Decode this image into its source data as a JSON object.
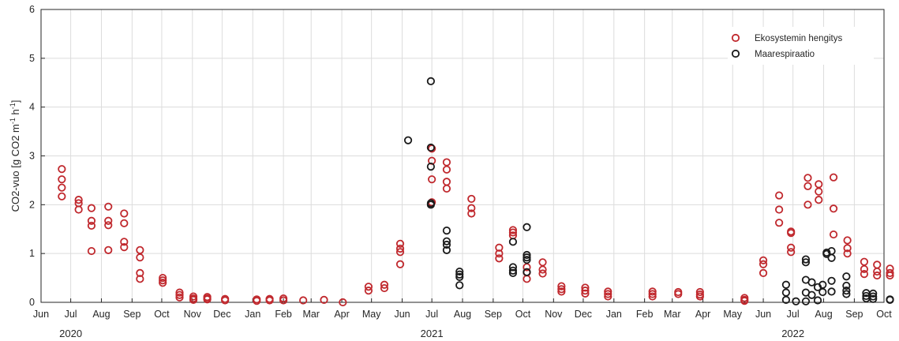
{
  "chart_data": {
    "type": "scatter",
    "xlabel": "",
    "ylabel": "CO2-vuo [g CO2 m-1 h-1]",
    "ylim": [
      0,
      6
    ],
    "yticks": [
      "0",
      "1",
      "2",
      "3",
      "4",
      "5",
      "6"
    ],
    "xlim": [
      "2020-06-01",
      "2022-10-01"
    ],
    "xticks": [
      {
        "label": "Jun",
        "date": "2020-06-01"
      },
      {
        "label": "Jul",
        "date": "2020-07-01"
      },
      {
        "label": "Aug",
        "date": "2020-08-01"
      },
      {
        "label": "Sep",
        "date": "2020-09-01"
      },
      {
        "label": "Oct",
        "date": "2020-10-01"
      },
      {
        "label": "Nov",
        "date": "2020-11-01"
      },
      {
        "label": "Dec",
        "date": "2020-12-01"
      },
      {
        "label": "Jan",
        "date": "2021-01-01"
      },
      {
        "label": "Feb",
        "date": "2021-02-01"
      },
      {
        "label": "Mar",
        "date": "2021-03-01"
      },
      {
        "label": "Apr",
        "date": "2021-04-01"
      },
      {
        "label": "May",
        "date": "2021-05-01"
      },
      {
        "label": "Jun",
        "date": "2021-06-01"
      },
      {
        "label": "Jul",
        "date": "2021-07-01"
      },
      {
        "label": "Aug",
        "date": "2021-08-01"
      },
      {
        "label": "Sep",
        "date": "2021-09-01"
      },
      {
        "label": "Oct",
        "date": "2021-10-01"
      },
      {
        "label": "Nov",
        "date": "2021-11-01"
      },
      {
        "label": "Dec",
        "date": "2021-12-01"
      },
      {
        "label": "Jan",
        "date": "2022-01-01"
      },
      {
        "label": "Feb",
        "date": "2022-02-01"
      },
      {
        "label": "Mar",
        "date": "2022-03-01"
      },
      {
        "label": "Apr",
        "date": "2022-04-01"
      },
      {
        "label": "May",
        "date": "2022-05-01"
      },
      {
        "label": "Jun",
        "date": "2022-06-01"
      },
      {
        "label": "Jul",
        "date": "2022-07-01"
      },
      {
        "label": "Aug",
        "date": "2022-08-01"
      },
      {
        "label": "Sep",
        "date": "2022-09-01"
      },
      {
        "label": "Oct",
        "date": "2022-10-01"
      }
    ],
    "year_labels": [
      {
        "label": "2020",
        "date": "2020-07-01"
      },
      {
        "label": "2021",
        "date": "2021-07-01"
      },
      {
        "label": "2022",
        "date": "2022-07-01"
      }
    ],
    "grid": true,
    "legend_position": "top-right",
    "series": [
      {
        "name": "Ekosystemin hengitys",
        "color": "#c0282d",
        "points": [
          {
            "date": "2020-06-22",
            "values": [
              2.73,
              2.52,
              2.35,
              2.17
            ]
          },
          {
            "date": "2020-07-09",
            "values": [
              2.1,
              2.03,
              1.9
            ]
          },
          {
            "date": "2020-07-22",
            "values": [
              1.93,
              1.67,
              1.57,
              1.05
            ]
          },
          {
            "date": "2020-08-08",
            "values": [
              1.96,
              1.67,
              1.58,
              1.07
            ]
          },
          {
            "date": "2020-08-24",
            "values": [
              1.82,
              1.62,
              1.24,
              1.13
            ]
          },
          {
            "date": "2020-09-09",
            "values": [
              1.07,
              0.92,
              0.6,
              0.48
            ]
          },
          {
            "date": "2020-10-02",
            "values": [
              0.5,
              0.45,
              0.4
            ]
          },
          {
            "date": "2020-10-19",
            "values": [
              0.2,
              0.15,
              0.1
            ]
          },
          {
            "date": "2020-11-02",
            "values": [
              0.12,
              0.08,
              0.05
            ]
          },
          {
            "date": "2020-11-16",
            "values": [
              0.11,
              0.08,
              0.06
            ]
          },
          {
            "date": "2020-12-04",
            "values": [
              0.07,
              0.04
            ]
          },
          {
            "date": "2021-01-05",
            "values": [
              0.06,
              0.03
            ]
          },
          {
            "date": "2021-01-18",
            "values": [
              0.07,
              0.04
            ]
          },
          {
            "date": "2021-02-01",
            "values": [
              0.08,
              0.04
            ]
          },
          {
            "date": "2021-02-21",
            "values": [
              0.04
            ]
          },
          {
            "date": "2021-03-14",
            "values": [
              0.05
            ]
          },
          {
            "date": "2021-04-02",
            "values": [
              0.0
            ]
          },
          {
            "date": "2021-04-28",
            "values": [
              0.32,
              0.24
            ]
          },
          {
            "date": "2021-05-14",
            "values": [
              0.36,
              0.29
            ]
          },
          {
            "date": "2021-05-30",
            "values": [
              1.2,
              1.1,
              1.03,
              0.78
            ]
          },
          {
            "date": "2021-07-01",
            "values": [
              3.15,
              2.9,
              2.52,
              2.05
            ]
          },
          {
            "date": "2021-07-16",
            "values": [
              2.87,
              2.72,
              2.47,
              2.33
            ]
          },
          {
            "date": "2021-08-10",
            "values": [
              2.12,
              1.93,
              1.82
            ]
          },
          {
            "date": "2021-09-07",
            "values": [
              1.12,
              1.0,
              0.9
            ]
          },
          {
            "date": "2021-09-21",
            "values": [
              1.48,
              1.43,
              1.37
            ]
          },
          {
            "date": "2021-10-05",
            "values": [
              0.72,
              0.61,
              0.48
            ]
          },
          {
            "date": "2021-10-21",
            "values": [
              0.82,
              0.67,
              0.59
            ]
          },
          {
            "date": "2021-11-09",
            "values": [
              0.33,
              0.27,
              0.22
            ]
          },
          {
            "date": "2021-12-03",
            "values": [
              0.3,
              0.24,
              0.18
            ]
          },
          {
            "date": "2021-12-26",
            "values": [
              0.22,
              0.17,
              0.12
            ]
          },
          {
            "date": "2022-02-09",
            "values": [
              0.22,
              0.17,
              0.12
            ]
          },
          {
            "date": "2022-03-07",
            "values": [
              0.21,
              0.17
            ]
          },
          {
            "date": "2022-03-29",
            "values": [
              0.21,
              0.16,
              0.12
            ]
          },
          {
            "date": "2022-05-13",
            "values": [
              0.09,
              0.05,
              0.03
            ]
          },
          {
            "date": "2022-06-01",
            "values": [
              0.86,
              0.78,
              0.6
            ]
          },
          {
            "date": "2022-06-17",
            "values": [
              2.19,
              1.9,
              1.63
            ]
          },
          {
            "date": "2022-06-29",
            "values": [
              1.45,
              1.42,
              1.12,
              1.03
            ]
          },
          {
            "date": "2022-07-16",
            "values": [
              2.55,
              2.38,
              2.0
            ]
          },
          {
            "date": "2022-07-27",
            "values": [
              2.42,
              2.27,
              2.1
            ]
          },
          {
            "date": "2022-08-11",
            "values": [
              2.56,
              1.92,
              1.39
            ]
          },
          {
            "date": "2022-08-25",
            "values": [
              1.27,
              1.11,
              1.0
            ]
          },
          {
            "date": "2022-09-11",
            "values": [
              0.83,
              0.68,
              0.58
            ]
          },
          {
            "date": "2022-09-24",
            "values": [
              0.77,
              0.63,
              0.55
            ]
          },
          {
            "date": "2022-10-07",
            "values": [
              0.69,
              0.6,
              0.55
            ]
          }
        ]
      },
      {
        "name": "Maarespiraatio",
        "color": "#1a1a1a",
        "points": [
          {
            "date": "2021-06-07",
            "values": [
              3.32
            ]
          },
          {
            "date": "2021-06-30",
            "values": [
              4.53,
              3.17,
              2.78,
              2.03,
              2.0
            ]
          },
          {
            "date": "2021-07-16",
            "values": [
              1.47,
              1.25,
              1.18,
              1.07
            ]
          },
          {
            "date": "2021-07-29",
            "values": [
              0.63,
              0.57,
              0.52,
              0.35
            ]
          },
          {
            "date": "2021-09-21",
            "values": [
              1.24,
              0.72,
              0.65,
              0.6
            ]
          },
          {
            "date": "2021-10-05",
            "values": [
              1.54,
              0.97,
              0.92,
              0.87,
              0.62
            ]
          },
          {
            "date": "2022-06-24",
            "values": [
              0.36,
              0.2,
              0.05
            ]
          },
          {
            "date": "2022-07-04",
            "values": [
              0.02
            ]
          },
          {
            "date": "2022-07-14",
            "values": [
              0.88,
              0.82,
              0.46,
              0.2,
              0.02
            ]
          },
          {
            "date": "2022-07-20",
            "values": [
              0.41,
              0.15
            ]
          },
          {
            "date": "2022-07-26",
            "values": [
              0.31,
              0.04
            ]
          },
          {
            "date": "2022-07-31",
            "values": [
              0.36,
              0.21
            ]
          },
          {
            "date": "2022-08-04",
            "values": [
              1.02,
              0.99
            ]
          },
          {
            "date": "2022-08-09",
            "values": [
              1.05,
              0.91,
              0.44,
              0.22
            ]
          },
          {
            "date": "2022-08-24",
            "values": [
              0.53,
              0.34,
              0.24,
              0.17
            ]
          },
          {
            "date": "2022-09-13",
            "values": [
              0.19,
              0.13,
              0.08
            ]
          },
          {
            "date": "2022-09-20",
            "values": [
              0.18,
              0.12,
              0.07
            ]
          },
          {
            "date": "2022-10-07",
            "values": [
              0.06,
              0.05
            ]
          }
        ]
      }
    ]
  }
}
